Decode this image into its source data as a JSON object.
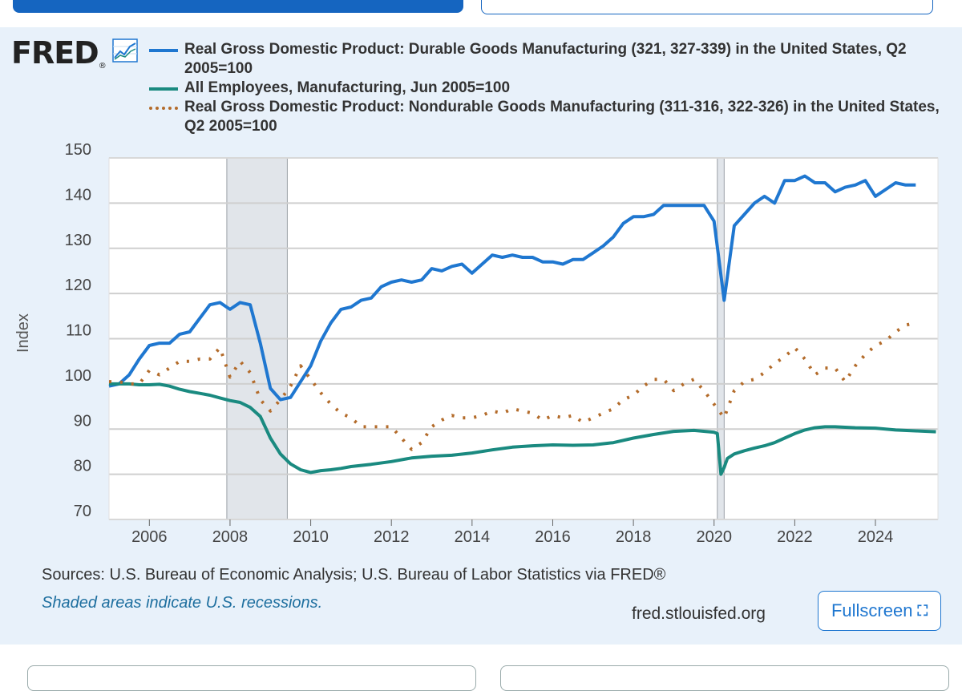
{
  "logo": {
    "text": "FRED",
    "reg": "®"
  },
  "legend": [
    {
      "label": "Real Gross Domestic Product: Durable Goods Manufacturing (321, 327-339) in the United States, Q2 2005=100",
      "color": "#1f77d0",
      "style": "solid"
    },
    {
      "label": "All Employees, Manufacturing, Jun 2005=100",
      "color": "#1a8a80",
      "style": "solid"
    },
    {
      "label": "Real Gross Domestic Product: Nondurable Goods Manufacturing (311-316, 322-326) in the United States, Q2 2005=100",
      "color": "#b36b2a",
      "style": "dotted"
    }
  ],
  "footer": {
    "sources": "Sources: U.S. Bureau of Economic Analysis; U.S. Bureau of Labor Statistics via FRED®",
    "note": "Shaded areas indicate U.S. recessions.",
    "site": "fred.stlouisfed.org",
    "fullscreen_label": "Fullscreen"
  },
  "chart_data": {
    "type": "line",
    "title": "",
    "xlabel": "",
    "ylabel": "Index",
    "xlim": [
      2005.0,
      2025.55
    ],
    "ylim": [
      70,
      150
    ],
    "yticks": [
      70,
      80,
      90,
      100,
      110,
      120,
      130,
      140,
      150
    ],
    "xticks": [
      2006,
      2008,
      2010,
      2012,
      2014,
      2016,
      2018,
      2020,
      2022,
      2024
    ],
    "grid": true,
    "recessions": [
      [
        2007.92,
        2009.42
      ],
      [
        2020.08,
        2020.25
      ]
    ],
    "series": [
      {
        "name": "Real Gross Domestic Product: Durable Goods Manufacturing (321, 327-339) in the United States, Q2 2005=100",
        "color": "#1f77d0",
        "style": "solid",
        "x": [
          2005.0,
          2005.25,
          2005.5,
          2005.75,
          2006.0,
          2006.25,
          2006.5,
          2006.75,
          2007.0,
          2007.25,
          2007.5,
          2007.75,
          2008.0,
          2008.25,
          2008.5,
          2008.75,
          2009.0,
          2009.25,
          2009.5,
          2009.75,
          2010.0,
          2010.25,
          2010.5,
          2010.75,
          2011.0,
          2011.25,
          2011.5,
          2011.75,
          2012.0,
          2012.25,
          2012.5,
          2012.75,
          2013.0,
          2013.25,
          2013.5,
          2013.75,
          2014.0,
          2014.25,
          2014.5,
          2014.75,
          2015.0,
          2015.25,
          2015.5,
          2015.75,
          2016.0,
          2016.25,
          2016.5,
          2016.75,
          2017.0,
          2017.25,
          2017.5,
          2017.75,
          2018.0,
          2018.25,
          2018.5,
          2018.75,
          2019.0,
          2019.25,
          2019.5,
          2019.75,
          2020.0,
          2020.25,
          2020.5,
          2020.75,
          2021.0,
          2021.25,
          2021.5,
          2021.75,
          2022.0,
          2022.25,
          2022.5,
          2022.75,
          2023.0,
          2023.25,
          2023.5,
          2023.75,
          2024.0,
          2024.25,
          2024.5,
          2024.75,
          2025.0
        ],
        "y": [
          99.5,
          100.0,
          102.0,
          105.5,
          108.5,
          109.0,
          109.0,
          111.0,
          111.5,
          114.5,
          117.5,
          118.0,
          116.5,
          118.0,
          117.5,
          109.0,
          99.0,
          96.5,
          97.0,
          100.5,
          104.0,
          109.5,
          113.5,
          116.5,
          117.0,
          118.5,
          119.0,
          121.5,
          122.5,
          123.0,
          122.5,
          123.0,
          125.5,
          125.0,
          126.0,
          126.5,
          124.5,
          126.5,
          128.5,
          128.0,
          128.5,
          128.0,
          128.0,
          127.0,
          127.0,
          126.5,
          127.5,
          127.5,
          129.0,
          130.5,
          132.5,
          135.5,
          137.0,
          137.0,
          137.5,
          139.5,
          139.5,
          139.5,
          139.5,
          139.5,
          136.0,
          118.5,
          135.0,
          137.5,
          140.0,
          141.5,
          140.0,
          145.0,
          145.0,
          146.0,
          144.5,
          144.5,
          142.5,
          143.5,
          144.0,
          145.0,
          141.5,
          143.0,
          144.5,
          144.0,
          144.0
        ]
      },
      {
        "name": "All Employees, Manufacturing, Jun 2005=100",
        "color": "#1a8a80",
        "style": "solid",
        "x": [
          2005.0,
          2005.25,
          2005.5,
          2005.75,
          2006.0,
          2006.25,
          2006.5,
          2006.75,
          2007.0,
          2007.25,
          2007.5,
          2007.75,
          2008.0,
          2008.25,
          2008.5,
          2008.75,
          2009.0,
          2009.25,
          2009.5,
          2009.75,
          2010.0,
          2010.25,
          2010.5,
          2010.75,
          2011.0,
          2011.5,
          2012.0,
          2012.5,
          2013.0,
          2013.5,
          2014.0,
          2014.5,
          2015.0,
          2015.5,
          2016.0,
          2016.5,
          2017.0,
          2017.5,
          2018.0,
          2018.5,
          2019.0,
          2019.5,
          2020.0,
          2020.08,
          2020.17,
          2020.25,
          2020.33,
          2020.5,
          2020.75,
          2021.0,
          2021.25,
          2021.5,
          2021.75,
          2022.0,
          2022.25,
          2022.5,
          2022.75,
          2023.0,
          2023.5,
          2024.0,
          2024.5,
          2025.0,
          2025.5
        ],
        "y": [
          100.0,
          100.0,
          100.0,
          99.8,
          99.8,
          99.9,
          99.5,
          98.8,
          98.3,
          97.9,
          97.5,
          96.9,
          96.3,
          95.9,
          94.8,
          92.8,
          88.0,
          84.5,
          82.3,
          81.0,
          80.4,
          80.8,
          81.0,
          81.3,
          81.7,
          82.2,
          82.8,
          83.6,
          84.0,
          84.2,
          84.7,
          85.4,
          86.0,
          86.3,
          86.5,
          86.4,
          86.5,
          87.0,
          88.0,
          88.8,
          89.5,
          89.7,
          89.3,
          89.0,
          80.0,
          81.5,
          83.5,
          84.5,
          85.2,
          85.8,
          86.3,
          87.0,
          88.0,
          89.0,
          89.8,
          90.3,
          90.5,
          90.5,
          90.3,
          90.2,
          89.8,
          89.6,
          89.4
        ]
      },
      {
        "name": "Real Gross Domestic Product: Nondurable Goods Manufacturing (311-316, 322-326) in the United States, Q2 2005=100",
        "color": "#b36b2a",
        "style": "dotted",
        "x": [
          2005.0,
          2005.25,
          2005.5,
          2005.75,
          2006.0,
          2006.25,
          2006.5,
          2006.75,
          2007.0,
          2007.25,
          2007.5,
          2007.75,
          2008.0,
          2008.25,
          2008.5,
          2008.75,
          2009.0,
          2009.25,
          2009.5,
          2009.75,
          2010.0,
          2010.25,
          2010.5,
          2010.75,
          2011.0,
          2011.25,
          2011.5,
          2011.75,
          2012.0,
          2012.25,
          2012.5,
          2012.75,
          2013.0,
          2013.25,
          2013.5,
          2013.75,
          2014.0,
          2014.25,
          2014.5,
          2014.75,
          2015.0,
          2015.25,
          2015.5,
          2015.75,
          2016.0,
          2016.25,
          2016.5,
          2016.75,
          2017.0,
          2017.25,
          2017.5,
          2017.75,
          2018.0,
          2018.25,
          2018.5,
          2018.75,
          2019.0,
          2019.25,
          2019.5,
          2019.75,
          2020.0,
          2020.25,
          2020.5,
          2020.75,
          2021.0,
          2021.25,
          2021.5,
          2021.75,
          2022.0,
          2022.25,
          2022.5,
          2022.75,
          2023.0,
          2023.25,
          2023.5,
          2023.75,
          2024.0,
          2024.25,
          2024.5,
          2024.75,
          2025.0
        ],
        "y": [
          100.5,
          100.5,
          100.0,
          100.0,
          103.0,
          102.0,
          103.5,
          105.0,
          105.0,
          105.5,
          105.5,
          108.0,
          101.5,
          105.0,
          102.5,
          96.5,
          94.0,
          96.5,
          99.5,
          104.0,
          101.0,
          98.0,
          95.5,
          93.5,
          92.5,
          90.5,
          90.5,
          90.5,
          90.5,
          88.0,
          85.5,
          87.0,
          90.5,
          92.0,
          93.0,
          92.5,
          92.5,
          93.0,
          94.0,
          93.5,
          94.5,
          94.0,
          93.5,
          92.0,
          93.0,
          92.5,
          93.0,
          91.5,
          92.5,
          93.5,
          94.5,
          96.5,
          97.5,
          99.5,
          101.0,
          101.0,
          98.5,
          100.0,
          101.0,
          98.5,
          95.5,
          92.5,
          98.5,
          100.5,
          101.0,
          102.5,
          104.5,
          106.0,
          108.0,
          105.5,
          102.0,
          103.5,
          103.5,
          100.5,
          104.0,
          106.5,
          108.5,
          109.5,
          111.5,
          113.0,
          113.5
        ]
      }
    ]
  }
}
